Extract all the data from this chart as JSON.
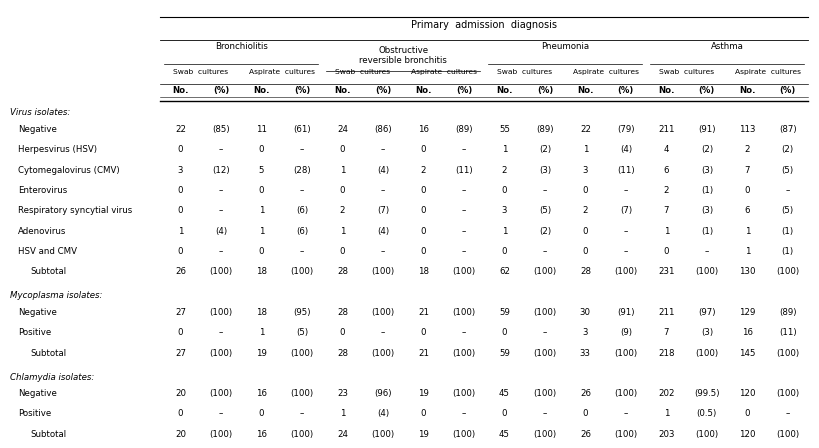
{
  "title": "Primary  admission  diagnosis",
  "group_labels": [
    "Bronchiolitis",
    "Obstructive\nreversible bronchitis",
    "Pneumonia",
    "Asthma"
  ],
  "swab_asp": [
    "Swab  cultures",
    "Aspirate  cultures",
    "Swab  cultures",
    "Aspirate  cultures",
    "Swab  cultures",
    "Aspirate  cultures",
    "Swab  cultures",
    "Aspirate  cultures"
  ],
  "subheaders": [
    "No.",
    "(%)",
    "No.",
    "(%)",
    "No.",
    "(%)",
    "No.",
    "(%)",
    "No.",
    "(%)",
    "No.",
    "(%)",
    "No.",
    "(%)",
    "No.",
    "(%)"
  ],
  "sections": [
    {
      "normal_label": "Virus ",
      "italic_label": "isolates:",
      "rows": [
        {
          "label": "Negative",
          "indent": true,
          "vals": [
            "22",
            "(85)",
            "11",
            "(61)",
            "24",
            "(86)",
            "16",
            "(89)",
            "55",
            "(89)",
            "22",
            "(79)",
            "211",
            "(91)",
            "113",
            "(87)"
          ]
        },
        {
          "label": "Herpesvirus (HSV)",
          "indent": true,
          "vals": [
            "0",
            "–",
            "0",
            "–",
            "0",
            "–",
            "0",
            "–",
            "1",
            "(2)",
            "1",
            "(4)",
            "4",
            "(2)",
            "2",
            "(2)"
          ]
        },
        {
          "label": "Cytomegalovirus (CMV)",
          "indent": true,
          "vals": [
            "3",
            "(12)",
            "5",
            "(28)",
            "1",
            "(4)",
            "2",
            "(11)",
            "2",
            "(3)",
            "3",
            "(11)",
            "6",
            "(3)",
            "7",
            "(5)"
          ]
        },
        {
          "label": "Enterovirus",
          "indent": true,
          "vals": [
            "0",
            "–",
            "0",
            "–",
            "0",
            "–",
            "0",
            "–",
            "0",
            "–",
            "0",
            "–",
            "2",
            "(1)",
            "0",
            "–"
          ]
        },
        {
          "label": "Respiratory syncytial virus",
          "indent": true,
          "vals": [
            "0",
            "–",
            "1",
            "(6)",
            "2",
            "(7)",
            "0",
            "–",
            "3",
            "(5)",
            "2",
            "(7)",
            "7",
            "(3)",
            "6",
            "(5)"
          ]
        },
        {
          "label": "Adenovirus",
          "indent": true,
          "vals": [
            "1",
            "(4)",
            "1",
            "(6)",
            "1",
            "(4)",
            "0",
            "–",
            "1",
            "(2)",
            "0",
            "–",
            "1",
            "(1)",
            "1",
            "(1)"
          ]
        },
        {
          "label": "HSV and CMV",
          "indent": true,
          "vals": [
            "0",
            "–",
            "0",
            "–",
            "0",
            "–",
            "0",
            "–",
            "0",
            "–",
            "0",
            "–",
            "0",
            "–",
            "1",
            "(1)"
          ]
        },
        {
          "label": "Subtotal",
          "indent": false,
          "vals": [
            "26",
            "(100)",
            "18",
            "(100)",
            "28",
            "(100)",
            "18",
            "(100)",
            "62",
            "(100)",
            "28",
            "(100)",
            "231",
            "(100)",
            "130",
            "(100)"
          ]
        }
      ]
    },
    {
      "normal_label": "Mycoplasma ",
      "italic_label": "isolates:",
      "rows": [
        {
          "label": "Negative",
          "indent": true,
          "vals": [
            "27",
            "(100)",
            "18",
            "(95)",
            "28",
            "(100)",
            "21",
            "(100)",
            "59",
            "(100)",
            "30",
            "(91)",
            "211",
            "(97)",
            "129",
            "(89)"
          ]
        },
        {
          "label": "Positive",
          "indent": true,
          "vals": [
            "0",
            "–",
            "1",
            "(5)",
            "0",
            "–",
            "0",
            "–",
            "0",
            "–",
            "3",
            "(9)",
            "7",
            "(3)",
            "16",
            "(11)"
          ]
        },
        {
          "label": "Subtotal",
          "indent": false,
          "vals": [
            "27",
            "(100)",
            "19",
            "(100)",
            "28",
            "(100)",
            "21",
            "(100)",
            "59",
            "(100)",
            "33",
            "(100)",
            "218",
            "(100)",
            "145",
            "(100)"
          ]
        }
      ]
    },
    {
      "normal_label": "Chlamydia ",
      "italic_label": "isolates:",
      "rows": [
        {
          "label": "Negative",
          "indent": true,
          "vals": [
            "20",
            "(100)",
            "16",
            "(100)",
            "23",
            "(96)",
            "19",
            "(100)",
            "45",
            "(100)",
            "26",
            "(100)",
            "202",
            "(99.5)",
            "120",
            "(100)"
          ]
        },
        {
          "label": "Positive",
          "indent": true,
          "vals": [
            "0",
            "–",
            "0",
            "–",
            "1",
            "(4)",
            "0",
            "–",
            "0",
            "–",
            "0",
            "–",
            "1",
            "(0.5)",
            "0",
            "–"
          ]
        },
        {
          "label": "Subtotal",
          "indent": false,
          "vals": [
            "20",
            "(100)",
            "16",
            "(100)",
            "24",
            "(100)",
            "19",
            "(100)",
            "45",
            "(100)",
            "26",
            "(100)",
            "203",
            "(100)",
            "120",
            "(100)"
          ]
        }
      ]
    }
  ],
  "bg_color": "#ffffff",
  "text_color": "#000000",
  "font_size": 6.2,
  "header_font_size": 7.0
}
